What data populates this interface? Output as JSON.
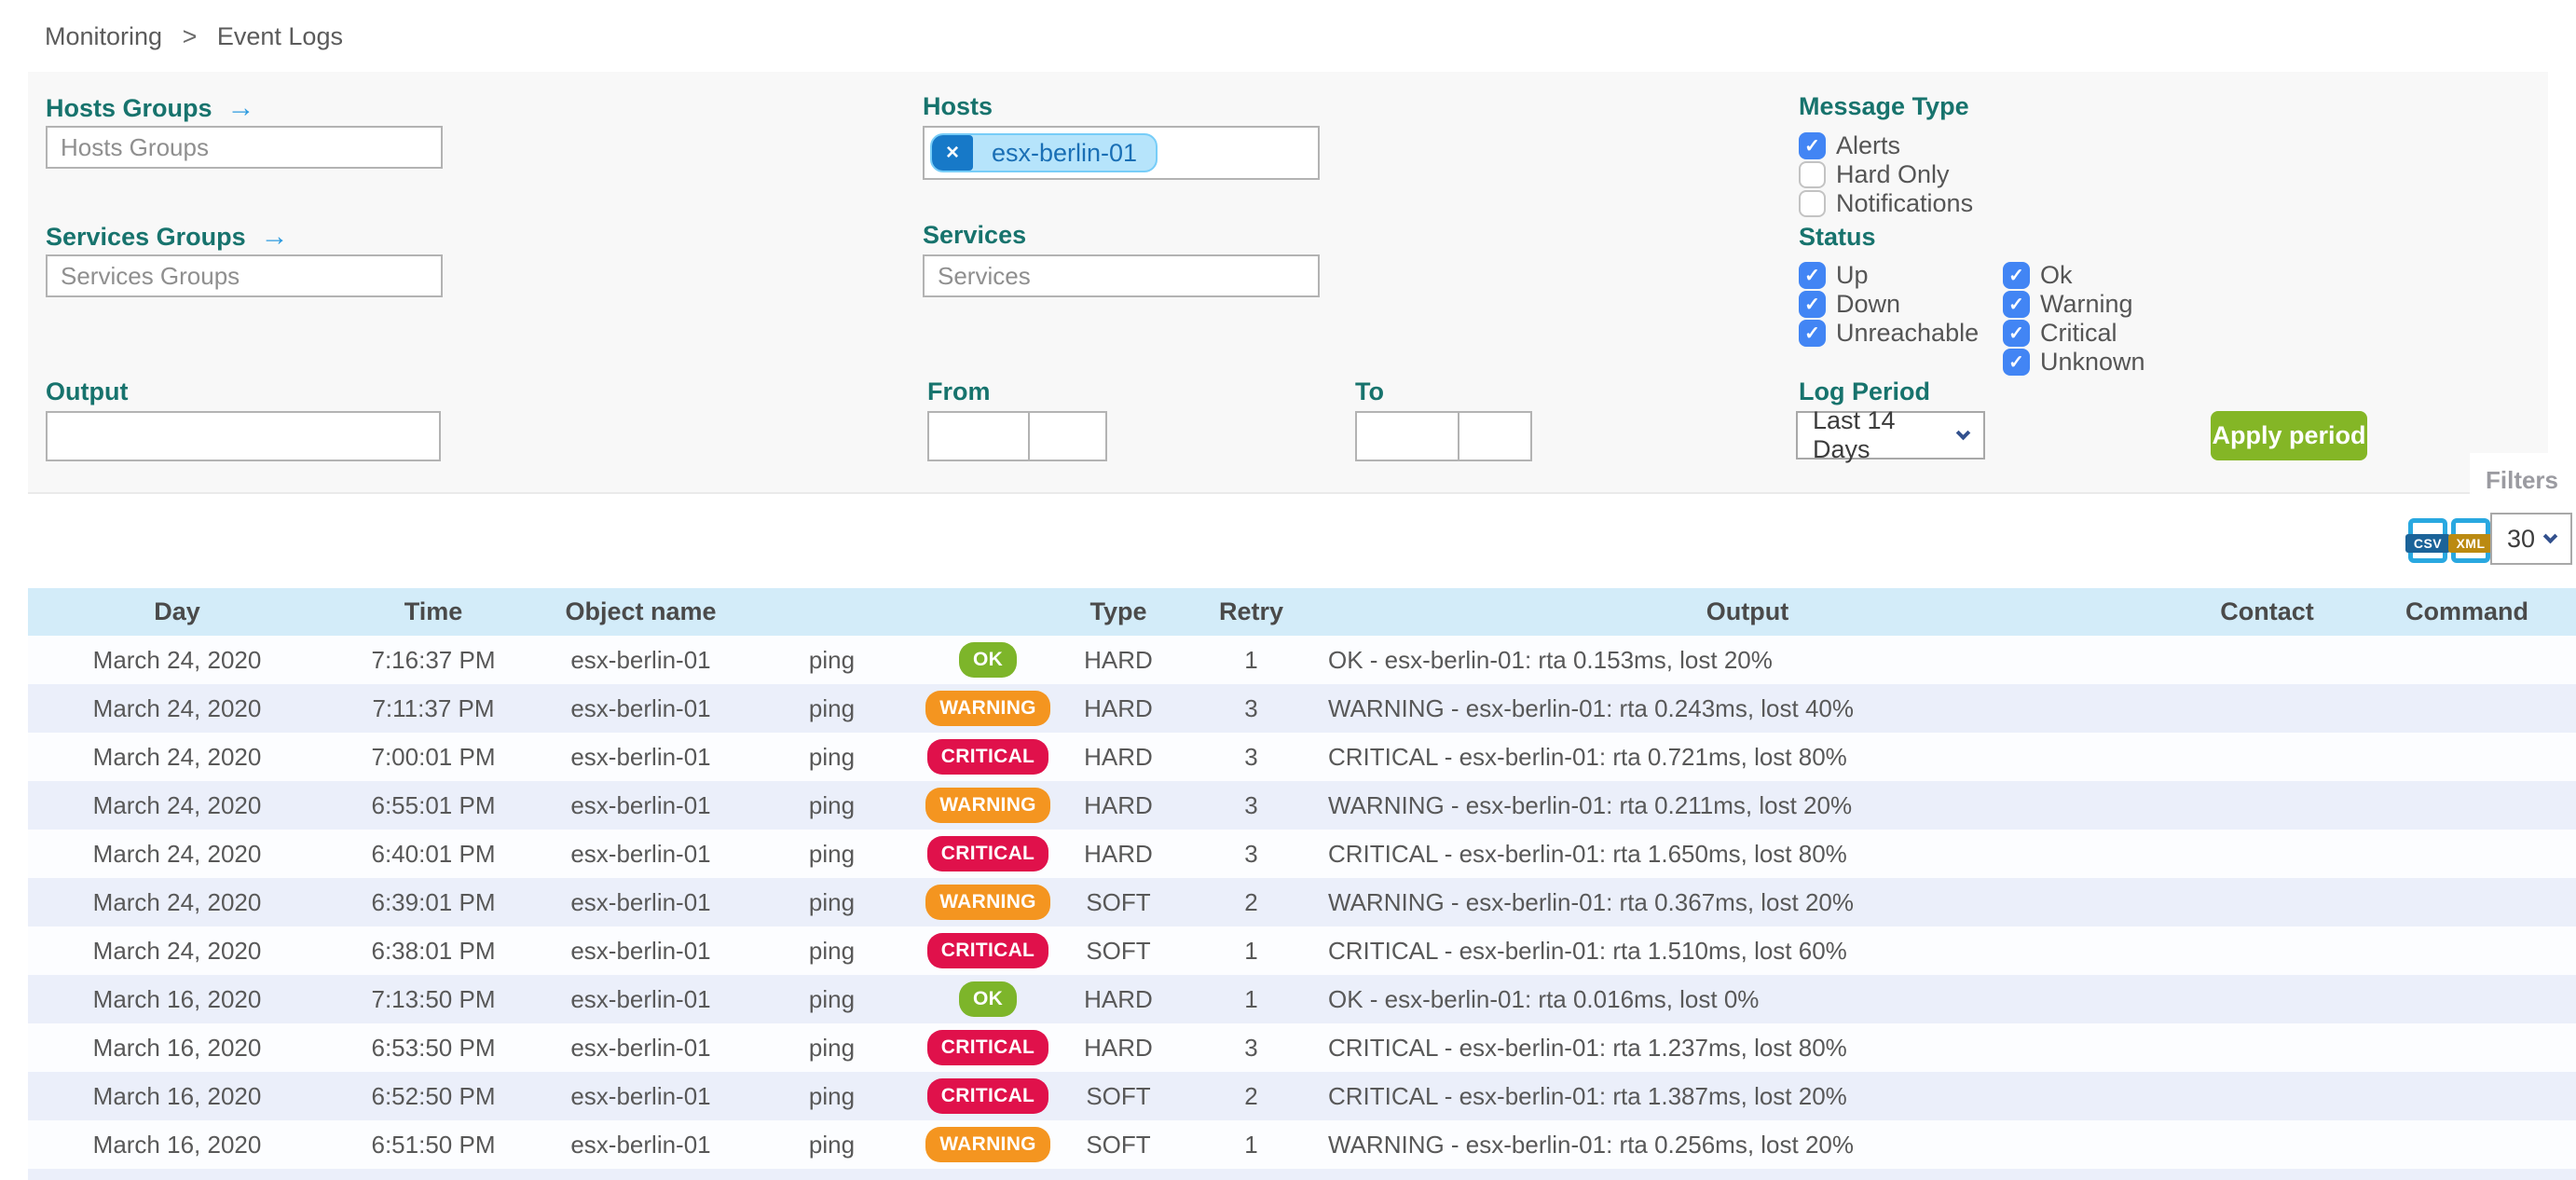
{
  "breadcrumb": {
    "items": [
      "Monitoring",
      "Event Logs"
    ],
    "separator": ">"
  },
  "filters": {
    "hosts_groups": {
      "label": "Hosts Groups",
      "placeholder": "Hosts Groups"
    },
    "services_groups": {
      "label": "Services Groups",
      "placeholder": "Services Groups"
    },
    "hosts": {
      "label": "Hosts",
      "chip": "esx-berlin-01",
      "chip_remove": "×"
    },
    "services": {
      "label": "Services",
      "placeholder": "Services"
    },
    "output": {
      "label": "Output",
      "value": ""
    },
    "from": {
      "label": "From"
    },
    "to": {
      "label": "To"
    },
    "message_type": {
      "label": "Message Type",
      "options": [
        {
          "label": "Alerts",
          "checked": true
        },
        {
          "label": "Hard Only",
          "checked": false
        },
        {
          "label": "Notifications",
          "checked": false
        }
      ]
    },
    "status": {
      "label": "Status",
      "col1": [
        {
          "label": "Up",
          "checked": true
        },
        {
          "label": "Down",
          "checked": true
        },
        {
          "label": "Unreachable",
          "checked": true
        }
      ],
      "col2": [
        {
          "label": "Ok",
          "checked": true
        },
        {
          "label": "Warning",
          "checked": true
        },
        {
          "label": "Critical",
          "checked": true
        },
        {
          "label": "Unknown",
          "checked": true
        }
      ]
    },
    "log_period": {
      "label": "Log Period",
      "value": "Last 14 Days"
    },
    "apply_button": "Apply period",
    "filters_tab": "Filters",
    "check_glyph": "✓"
  },
  "toolbar": {
    "csv": "CSV",
    "xml": "XML",
    "page_size": "30"
  },
  "table": {
    "headers": [
      "Day",
      "Time",
      "Object name",
      "",
      "",
      "Type",
      "Retry",
      "Output",
      "Contact",
      "Command"
    ],
    "rows": [
      {
        "day": "March 24, 2020",
        "time": "7:16:37 PM",
        "object": "esx-berlin-01",
        "service": "ping",
        "status": "OK",
        "type": "HARD",
        "retry": "1",
        "output": "OK - esx-berlin-01: rta 0.153ms, lost 20%",
        "contact": "",
        "command": ""
      },
      {
        "day": "March 24, 2020",
        "time": "7:11:37 PM",
        "object": "esx-berlin-01",
        "service": "ping",
        "status": "WARNING",
        "type": "HARD",
        "retry": "3",
        "output": "WARNING - esx-berlin-01: rta 0.243ms, lost 40%",
        "contact": "",
        "command": ""
      },
      {
        "day": "March 24, 2020",
        "time": "7:00:01 PM",
        "object": "esx-berlin-01",
        "service": "ping",
        "status": "CRITICAL",
        "type": "HARD",
        "retry": "3",
        "output": "CRITICAL - esx-berlin-01: rta 0.721ms, lost 80%",
        "contact": "",
        "command": ""
      },
      {
        "day": "March 24, 2020",
        "time": "6:55:01 PM",
        "object": "esx-berlin-01",
        "service": "ping",
        "status": "WARNING",
        "type": "HARD",
        "retry": "3",
        "output": "WARNING - esx-berlin-01: rta 0.211ms, lost 20%",
        "contact": "",
        "command": ""
      },
      {
        "day": "March 24, 2020",
        "time": "6:40:01 PM",
        "object": "esx-berlin-01",
        "service": "ping",
        "status": "CRITICAL",
        "type": "HARD",
        "retry": "3",
        "output": "CRITICAL - esx-berlin-01: rta 1.650ms, lost 80%",
        "contact": "",
        "command": ""
      },
      {
        "day": "March 24, 2020",
        "time": "6:39:01 PM",
        "object": "esx-berlin-01",
        "service": "ping",
        "status": "WARNING",
        "type": "SOFT",
        "retry": "2",
        "output": "WARNING - esx-berlin-01: rta 0.367ms, lost 20%",
        "contact": "",
        "command": ""
      },
      {
        "day": "March 24, 2020",
        "time": "6:38:01 PM",
        "object": "esx-berlin-01",
        "service": "ping",
        "status": "CRITICAL",
        "type": "SOFT",
        "retry": "1",
        "output": "CRITICAL - esx-berlin-01: rta 1.510ms, lost 60%",
        "contact": "",
        "command": ""
      },
      {
        "day": "March 16, 2020",
        "time": "7:13:50 PM",
        "object": "esx-berlin-01",
        "service": "ping",
        "status": "OK",
        "type": "HARD",
        "retry": "1",
        "output": "OK - esx-berlin-01: rta 0.016ms, lost 0%",
        "contact": "",
        "command": ""
      },
      {
        "day": "March 16, 2020",
        "time": "6:53:50 PM",
        "object": "esx-berlin-01",
        "service": "ping",
        "status": "CRITICAL",
        "type": "HARD",
        "retry": "3",
        "output": "CRITICAL - esx-berlin-01: rta 1.237ms, lost 80%",
        "contact": "",
        "command": ""
      },
      {
        "day": "March 16, 2020",
        "time": "6:52:50 PM",
        "object": "esx-berlin-01",
        "service": "ping",
        "status": "CRITICAL",
        "type": "SOFT",
        "retry": "2",
        "output": "CRITICAL - esx-berlin-01: rta 1.387ms, lost 20%",
        "contact": "",
        "command": ""
      },
      {
        "day": "March 16, 2020",
        "time": "6:51:50 PM",
        "object": "esx-berlin-01",
        "service": "ping",
        "status": "WARNING",
        "type": "SOFT",
        "retry": "1",
        "output": "WARNING - esx-berlin-01: rta 0.256ms, lost 20%",
        "contact": "",
        "command": ""
      }
    ]
  },
  "colors": {
    "teal": "#17736d",
    "arrow": "#2e9bdf",
    "check-blue": "#4285f4",
    "chip-bg": "#b6e4fb",
    "chip-border": "#77cdf8",
    "chip-btn": "#1779c8",
    "chip-text": "#1a6fb5",
    "ok": "#7db52a",
    "warning": "#f49520",
    "critical": "#e0114b",
    "button-green": "#84b626",
    "header-bg": "#d3ecf9",
    "stripe": "#ebeffa",
    "panel-bg": "#f8f8f8",
    "chevron": "#33518e",
    "file-blue": "#29a8e0",
    "csv-band": "#1b6399",
    "xml-band": "#bb8a11",
    "filters-gray": "#9b9ba1"
  }
}
